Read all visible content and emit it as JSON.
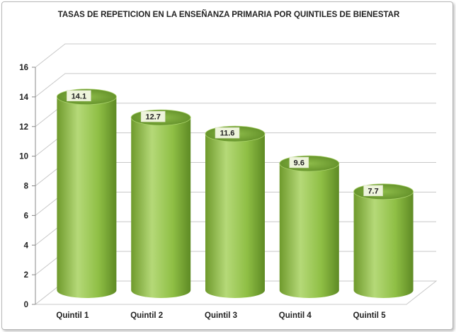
{
  "chart_data": {
    "type": "bar",
    "title": "TASAS DE REPETICION EN LA ENSEÑANZA PRIMARIA POR QUINTILES DE BIENESTAR",
    "categories": [
      "Quintil 1",
      "Quintil 2",
      "Quintil 3",
      "Quintil 4",
      "Quintil 5"
    ],
    "values": [
      14.1,
      12.7,
      11.6,
      9.6,
      7.7
    ],
    "data_labels": [
      "14.1",
      "12.7",
      "11.6",
      "9.6",
      "7.7"
    ],
    "ylim": [
      0,
      16
    ],
    "yticks": [
      0,
      2,
      4,
      6,
      8,
      10,
      12,
      14,
      16
    ],
    "xlabel": "",
    "ylabel": "",
    "grid": true,
    "bar_shape": "cylinder",
    "legend": "none",
    "colors": {
      "bar_light": "#b5d978",
      "bar_mid": "#8fbf45",
      "bar_dark": "#5e8a24",
      "top_dark": "#77a832",
      "label_bg": "#eef4dc",
      "grid": "#c8c8c8"
    }
  }
}
